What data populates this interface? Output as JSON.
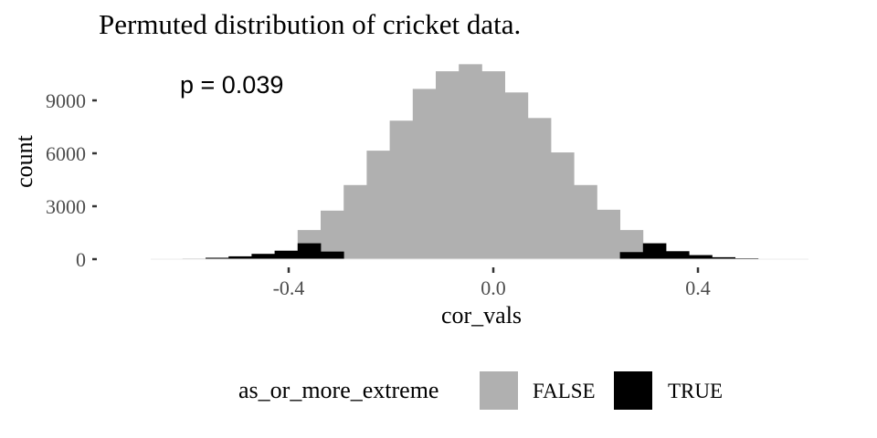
{
  "chart_data": {
    "type": "bar",
    "title": "Permuted distribution of cricket data.",
    "xlabel": "cor_vals",
    "ylabel": "count",
    "annotation": "p = 0.039",
    "xlim": [
      -0.67,
      0.61
    ],
    "ylim": [
      0,
      11000
    ],
    "x_ticks": [
      {
        "value": -0.4,
        "label": "-0.4"
      },
      {
        "value": 0.0,
        "label": "0.0"
      },
      {
        "value": 0.4,
        "label": "0.4"
      }
    ],
    "y_ticks": [
      {
        "value": 0,
        "label": "0"
      },
      {
        "value": 3000,
        "label": "3000"
      },
      {
        "value": 6000,
        "label": "6000"
      },
      {
        "value": 9000,
        "label": "9000"
      }
    ],
    "grid": false,
    "bin_width": 0.045,
    "legend": {
      "title": "as_or_more_extreme",
      "placement": "bottom",
      "entries": [
        {
          "label": "FALSE",
          "color": "#b0b0b0"
        },
        {
          "label": "TRUE",
          "color": "#000000"
        }
      ]
    },
    "series": [
      {
        "name": "FALSE",
        "color": "#b0b0b0",
        "bins": [
          {
            "x": -0.36,
            "count": 1650
          },
          {
            "x": -0.315,
            "count": 2750
          },
          {
            "x": -0.27,
            "count": 4200
          },
          {
            "x": -0.225,
            "count": 6150
          },
          {
            "x": -0.18,
            "count": 7850
          },
          {
            "x": -0.135,
            "count": 9650
          },
          {
            "x": -0.09,
            "count": 10650
          },
          {
            "x": -0.045,
            "count": 11050
          },
          {
            "x": 0.0,
            "count": 10650
          },
          {
            "x": 0.045,
            "count": 9450
          },
          {
            "x": 0.09,
            "count": 8000
          },
          {
            "x": 0.135,
            "count": 6050
          },
          {
            "x": 0.18,
            "count": 4200
          },
          {
            "x": 0.225,
            "count": 2800
          },
          {
            "x": 0.27,
            "count": 1650
          }
        ]
      },
      {
        "name": "TRUE",
        "color": "#000000",
        "bins": [
          {
            "x": -0.63,
            "count": 15
          },
          {
            "x": -0.585,
            "count": 30
          },
          {
            "x": -0.54,
            "count": 80
          },
          {
            "x": -0.495,
            "count": 160
          },
          {
            "x": -0.45,
            "count": 300
          },
          {
            "x": -0.405,
            "count": 480
          },
          {
            "x": -0.36,
            "count": 900
          },
          {
            "x": -0.315,
            "count": 430
          },
          {
            "x": 0.27,
            "count": 400
          },
          {
            "x": 0.315,
            "count": 900
          },
          {
            "x": 0.36,
            "count": 450
          },
          {
            "x": 0.405,
            "count": 230
          },
          {
            "x": 0.45,
            "count": 110
          },
          {
            "x": 0.495,
            "count": 50
          },
          {
            "x": 0.54,
            "count": 20
          }
        ]
      }
    ]
  }
}
